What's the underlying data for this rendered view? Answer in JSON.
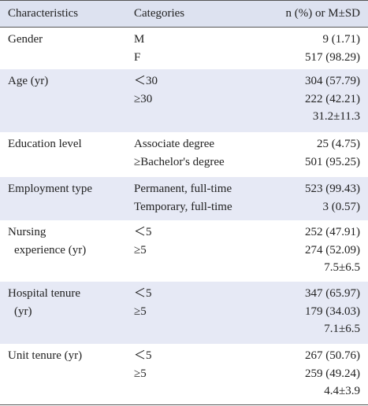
{
  "table": {
    "header": [
      "Characteristics",
      "Categories",
      "n (%) or M±SD"
    ],
    "rows": [
      {
        "characteristic": [
          "Gender"
        ],
        "categories": [
          "M",
          "F"
        ],
        "values": [
          "9 (1.71)",
          "517 (98.29)"
        ]
      },
      {
        "characteristic": [
          "Age (yr)"
        ],
        "categories": [
          "＜30",
          "≥30"
        ],
        "values": [
          "304 (57.79)",
          "222 (42.21)",
          "31.2±11.3"
        ]
      },
      {
        "characteristic": [
          "Education level"
        ],
        "categories": [
          "Associate degree",
          "≥Bachelor's degree"
        ],
        "values": [
          "25 (4.75)",
          "501 (95.25)"
        ]
      },
      {
        "characteristic": [
          "Employment type"
        ],
        "categories": [
          "Permanent, full-time",
          "Temporary, full-time"
        ],
        "values": [
          "523 (99.43)",
          "3 (0.57)"
        ]
      },
      {
        "characteristic": [
          "Nursing",
          "experience (yr)"
        ],
        "categories": [
          "＜5",
          "≥5"
        ],
        "values": [
          "252 (47.91)",
          "274 (52.09)",
          "7.5±6.5"
        ]
      },
      {
        "characteristic": [
          "Hospital tenure",
          "(yr)"
        ],
        "categories": [
          "＜5",
          "≥5"
        ],
        "values": [
          "347 (65.97)",
          "179 (34.03)",
          "7.1±6.5"
        ]
      },
      {
        "characteristic": [
          "Unit tenure (yr)"
        ],
        "categories": [
          "＜5",
          "≥5"
        ],
        "values": [
          "267 (50.76)",
          "259 (49.24)",
          "4.4±3.9"
        ]
      }
    ]
  }
}
